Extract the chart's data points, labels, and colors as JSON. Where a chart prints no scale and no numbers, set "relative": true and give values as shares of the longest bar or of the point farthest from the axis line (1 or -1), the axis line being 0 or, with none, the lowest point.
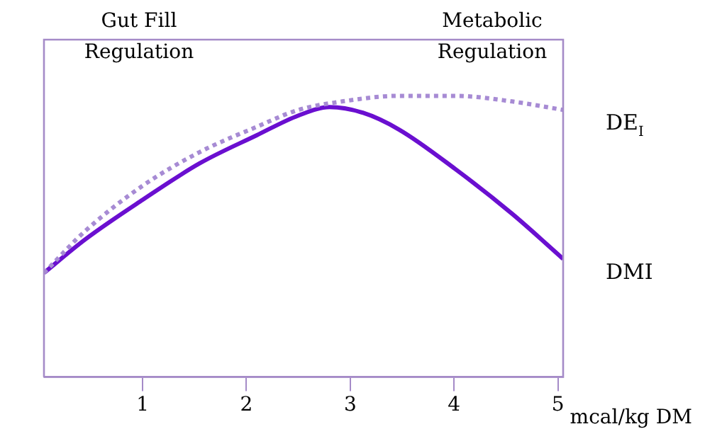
{
  "chart_data": {
    "type": "line",
    "relative": true,
    "xlabel": "mcal/kg DM",
    "xlim": [
      0.05,
      5.05
    ],
    "xticks": [
      1,
      2,
      3,
      4,
      5
    ],
    "annotations": [
      "Gut Fill\nRegulation",
      "Metabolic\nRegulation"
    ],
    "grid": false,
    "legend": false,
    "marker": "none",
    "series": [
      {
        "name": "DE$_{I}$",
        "color": "#a78bd4",
        "line_style": "dotted",
        "x": [
          0.05,
          0.45,
          1.0,
          1.55,
          2.1,
          2.5,
          2.92,
          3.47,
          4.01,
          4.56,
          5.05
        ],
        "values": [
          0.37,
          0.52,
          0.68,
          0.8,
          0.89,
          0.95,
          0.98,
          1.0,
          1.0,
          0.98,
          0.95
        ]
      },
      {
        "name": "DMI",
        "color": "#6a0fd0",
        "line_style": "solid",
        "x": [
          0.05,
          0.45,
          1.0,
          1.55,
          2.1,
          2.5,
          2.8,
          3.12,
          3.47,
          4.01,
          4.56,
          5.05
        ],
        "values": [
          0.37,
          0.49,
          0.63,
          0.76,
          0.86,
          0.93,
          0.96,
          0.94,
          0.88,
          0.74,
          0.58,
          0.42
        ]
      }
    ]
  }
}
